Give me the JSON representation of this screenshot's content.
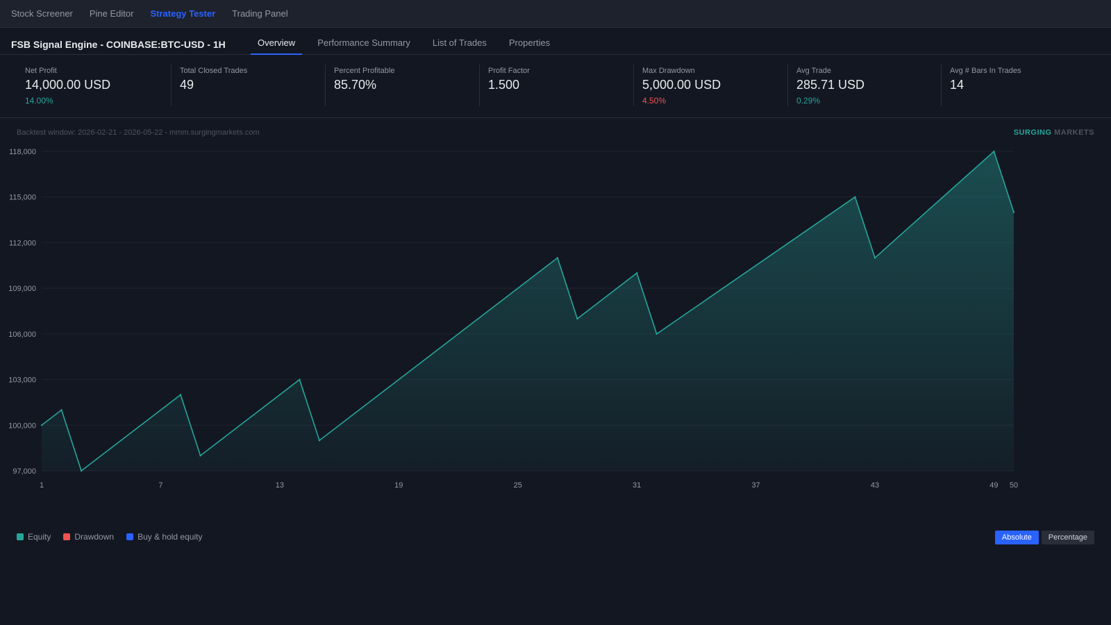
{
  "nav": {
    "items": [
      {
        "label": "Stock Screener",
        "active": false
      },
      {
        "label": "Pine Editor",
        "active": false
      },
      {
        "label": "Strategy Tester",
        "active": true
      },
      {
        "label": "Trading Panel",
        "active": false
      }
    ]
  },
  "header": {
    "title": "FSB Signal Engine - COINBASE:BTC-USD - 1H",
    "tabs": [
      {
        "label": "Overview",
        "active": true
      },
      {
        "label": "Performance Summary",
        "active": false
      },
      {
        "label": "List of Trades",
        "active": false
      },
      {
        "label": "Properties",
        "active": false
      }
    ]
  },
  "metrics": [
    {
      "label": "Net Profit",
      "value": "14,000.00 USD",
      "sub": "14.00%",
      "sub_status": "positive"
    },
    {
      "label": "Total Closed Trades",
      "value": "49",
      "sub": "",
      "sub_status": ""
    },
    {
      "label": "Percent Profitable",
      "value": "85.70%",
      "sub": "",
      "sub_status": ""
    },
    {
      "label": "Profit Factor",
      "value": "1.500",
      "sub": "",
      "sub_status": ""
    },
    {
      "label": "Max Drawdown",
      "value": "5,000.00 USD",
      "sub": "4.50%",
      "sub_status": "negative"
    },
    {
      "label": "Avg Trade",
      "value": "285.71 USD",
      "sub": "0.29%",
      "sub_status": "positive"
    },
    {
      "label": "Avg # Bars In Trades",
      "value": "14",
      "sub": "",
      "sub_status": ""
    }
  ],
  "chart": {
    "backtest_note": "Backtest window: 2026-02-21 - 2026-05-22 - mmm.surgingmarkets.com",
    "brand_part1": "SURGING",
    "brand_part2": "MARKETS"
  },
  "legend": [
    {
      "label": "Equity",
      "color": "#26a69a"
    },
    {
      "label": "Drawdown",
      "color": "#ef5350"
    },
    {
      "label": "Buy & hold equity",
      "color": "#2962ff"
    }
  ],
  "toggles": [
    {
      "label": "Absolute",
      "active": true
    },
    {
      "label": "Percentage",
      "active": false
    }
  ],
  "colors": {
    "accent": "#2962ff",
    "positive": "#26a69a",
    "negative": "#ef5350",
    "background": "#131722"
  },
  "chart_data": {
    "type": "area",
    "title": "",
    "xlabel": "",
    "ylabel": "",
    "xlim": [
      1,
      50
    ],
    "ylim": [
      97000,
      118000
    ],
    "x_ticks": [
      1,
      7,
      13,
      19,
      25,
      31,
      37,
      43,
      49,
      50
    ],
    "y_ticks": [
      97000,
      100000,
      103000,
      106000,
      109000,
      112000,
      115000,
      118000
    ],
    "y_tick_labels": [
      "97,000",
      "100,000",
      "103,000",
      "106,000",
      "109,000",
      "112,000",
      "115,000",
      "118,000"
    ],
    "grid": true,
    "series": [
      {
        "name": "Equity",
        "color": "#26a69a",
        "points": [
          [
            1,
            100000
          ],
          [
            2,
            101000
          ],
          [
            3,
            97000
          ],
          [
            8,
            102000
          ],
          [
            9,
            98000
          ],
          [
            14,
            103000
          ],
          [
            15,
            99000
          ],
          [
            27,
            111000
          ],
          [
            28,
            107000
          ],
          [
            31,
            110000
          ],
          [
            32,
            106000
          ],
          [
            42,
            115000
          ],
          [
            43,
            111000
          ],
          [
            49,
            118000
          ],
          [
            50,
            114000
          ]
        ]
      }
    ]
  }
}
